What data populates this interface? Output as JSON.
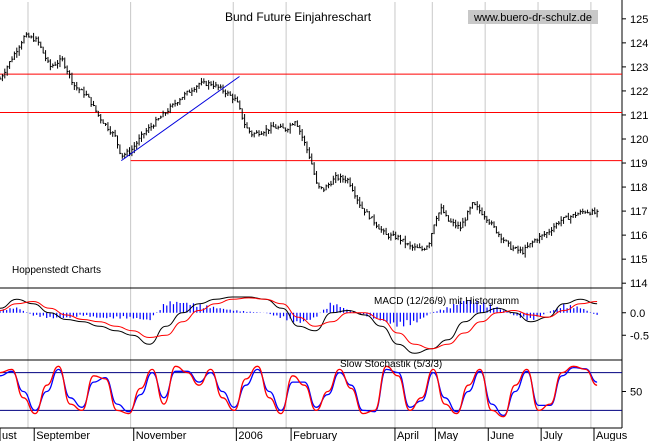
{
  "chart_data": [
    {
      "type": "line",
      "subtype": "ohlc-bars",
      "title": "Bund Future Einjahreschart",
      "watermark": "www.buero-dr-schulz.de",
      "annotation": "Hoppenstedt Charts",
      "y_ticks": [
        "125",
        "124",
        "123",
        "122",
        "121",
        "120",
        "119",
        "118",
        "117",
        "116",
        "115",
        "114"
      ],
      "ylim": [
        113.8,
        125.7
      ],
      "support_resistance": [
        122.7,
        121.1,
        119.1
      ],
      "trendline": [
        {
          "x": 0.195,
          "y": 119.1
        },
        {
          "x": 0.385,
          "y": 122.6
        }
      ],
      "x": [
        0.0,
        0.02,
        0.04,
        0.06,
        0.08,
        0.1,
        0.12,
        0.14,
        0.16,
        0.185,
        0.195,
        0.21,
        0.23,
        0.25,
        0.27,
        0.29,
        0.305,
        0.32,
        0.34,
        0.36,
        0.38,
        0.395,
        0.405,
        0.42,
        0.44,
        0.46,
        0.475,
        0.49,
        0.5,
        0.51,
        0.52,
        0.54,
        0.56,
        0.58,
        0.6,
        0.62,
        0.64,
        0.66,
        0.68,
        0.69,
        0.7,
        0.71,
        0.72,
        0.74,
        0.76,
        0.78,
        0.8,
        0.82,
        0.84,
        0.86,
        0.88,
        0.9,
        0.92,
        0.94,
        0.96
      ],
      "close": [
        122.5,
        123.4,
        124.3,
        124.1,
        123.0,
        123.3,
        122.2,
        121.8,
        120.9,
        120.1,
        119.3,
        119.5,
        120.2,
        120.7,
        121.2,
        121.7,
        122.0,
        122.3,
        122.3,
        122.0,
        121.6,
        120.5,
        120.2,
        120.3,
        120.5,
        120.4,
        120.8,
        119.8,
        119.1,
        118.0,
        117.9,
        118.4,
        118.3,
        117.2,
        116.6,
        116.0,
        115.9,
        115.5,
        115.4,
        115.7,
        116.7,
        117.1,
        116.6,
        116.3,
        117.3,
        116.8,
        116.1,
        115.5,
        115.3,
        115.8,
        116.1,
        116.6,
        116.8,
        117.0,
        116.9
      ]
    },
    {
      "type": "line",
      "title": "MACD (12/26/9) mit Histogramm",
      "y_ticks": [
        "0.0",
        "-0.5"
      ],
      "ylim": [
        -1.05,
        0.55
      ],
      "series": [
        {
          "color": "#000000",
          "values": [
            0.1,
            0.3,
            0.2,
            0.0,
            -0.15,
            -0.2,
            -0.3,
            -0.4,
            -0.5,
            -0.7,
            -0.3,
            0.0,
            0.2,
            0.3,
            0.35,
            0.35,
            0.3,
            0.1,
            -0.3,
            -0.4,
            0.0,
            0.05,
            -0.05,
            -0.3,
            -0.7,
            -0.9,
            -0.8,
            -0.6,
            -0.2,
            0.0,
            0.1,
            0.0,
            -0.2,
            -0.1,
            0.2,
            0.3,
            0.2
          ]
        },
        {
          "color": "#ff0000",
          "values": [
            0.05,
            0.2,
            0.25,
            0.1,
            -0.05,
            -0.15,
            -0.2,
            -0.3,
            -0.4,
            -0.55,
            -0.5,
            -0.2,
            0.05,
            0.2,
            0.3,
            0.33,
            0.3,
            0.2,
            -0.1,
            -0.3,
            -0.2,
            0.0,
            0.0,
            -0.15,
            -0.45,
            -0.7,
            -0.8,
            -0.7,
            -0.45,
            -0.2,
            0.0,
            0.05,
            -0.05,
            -0.1,
            0.05,
            0.2,
            0.25
          ]
        },
        {
          "color": "#0000ff",
          "values": [
            0.05,
            0.1,
            -0.05,
            -0.1,
            -0.1,
            -0.05,
            -0.1,
            -0.1,
            -0.1,
            -0.15,
            0.2,
            0.2,
            0.15,
            0.1,
            0.05,
            0.02,
            0.0,
            -0.1,
            -0.2,
            -0.1,
            0.2,
            0.05,
            -0.05,
            -0.15,
            -0.25,
            -0.2,
            0.0,
            0.1,
            0.25,
            0.2,
            0.1,
            -0.05,
            -0.15,
            0.0,
            0.15,
            0.1,
            -0.05
          ]
        }
      ]
    },
    {
      "type": "line",
      "title": "Slow Stochastik (5/3/3)",
      "y_ticks": [
        "50"
      ],
      "ylim": [
        0,
        100
      ],
      "levels": [
        80,
        20
      ],
      "series": [
        {
          "color": "#ff0000",
          "values": [
            80,
            85,
            40,
            15,
            60,
            90,
            30,
            20,
            75,
            70,
            20,
            15,
            55,
            85,
            30,
            90,
            80,
            60,
            85,
            40,
            20,
            70,
            90,
            40,
            15,
            75,
            60,
            20,
            50,
            85,
            55,
            15,
            20,
            90,
            75,
            20,
            40,
            85,
            30,
            15,
            60,
            85,
            20,
            10,
            60,
            85,
            20,
            30,
            80,
            90,
            85,
            60
          ]
        },
        {
          "color": "#0000ff",
          "values": [
            75,
            82,
            50,
            20,
            50,
            85,
            40,
            25,
            65,
            72,
            30,
            18,
            45,
            80,
            40,
            82,
            82,
            65,
            80,
            50,
            25,
            60,
            85,
            50,
            20,
            65,
            65,
            25,
            45,
            80,
            60,
            20,
            18,
            85,
            80,
            25,
            35,
            80,
            40,
            18,
            50,
            82,
            30,
            12,
            50,
            82,
            28,
            28,
            75,
            88,
            86,
            65
          ]
        }
      ]
    }
  ],
  "x_axis": {
    "labels": [
      "ust",
      "September",
      "November",
      "2006",
      "February",
      "April",
      "May",
      "June",
      "July",
      "Augus"
    ]
  }
}
